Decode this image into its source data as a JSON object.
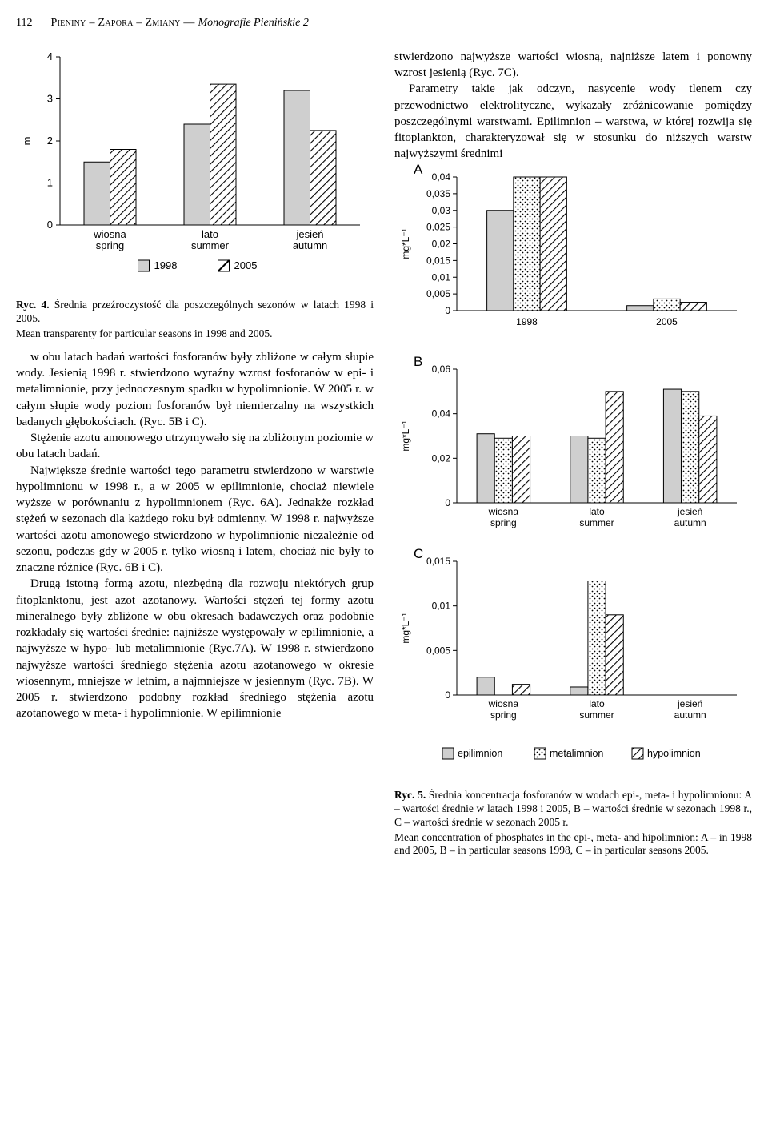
{
  "header": {
    "page_number": "112",
    "running": "Pieniny – Zapora – Zmiany — ",
    "running_ital": "Monografie Pienińskie 2"
  },
  "fig4": {
    "type": "bar",
    "ylim": [
      0,
      4
    ],
    "yticks": [
      0,
      1,
      2,
      3,
      4
    ],
    "categories": [
      {
        "pl": "wiosna",
        "en": "spring"
      },
      {
        "pl": "lato",
        "en": "summer"
      },
      {
        "pl": "jesień",
        "en": "autumn"
      }
    ],
    "series": [
      {
        "name": "1998",
        "pattern": "solid",
        "values": [
          1.5,
          2.4,
          3.2
        ]
      },
      {
        "name": "2005",
        "pattern": "diag",
        "values": [
          1.8,
          3.35,
          2.25
        ]
      }
    ],
    "ylabel": "m",
    "legend": [
      "1998",
      "2005"
    ],
    "colors": {
      "solid": "#cfcfcf",
      "stroke": "#000000",
      "bg": "#ffffff"
    },
    "caption_pl": "Ryc. 4. Średnia przeźroczystość dla poszczególnych sezonów w latach 1998 i 2005.",
    "caption_en": "Mean transparenty for particular seasons in 1998 and 2005."
  },
  "fig5": {
    "ylabel": "mg*L⁻¹",
    "legend": [
      {
        "label": "epilimnion",
        "pattern": "solid"
      },
      {
        "label": "metalimnion",
        "pattern": "dots"
      },
      {
        "label": "hypolimnion",
        "pattern": "diag"
      }
    ],
    "A": {
      "letter": "A",
      "type": "bar",
      "ylim": [
        0,
        0.04
      ],
      "yticks": [
        0,
        0.005,
        0.01,
        0.015,
        0.02,
        0.025,
        0.03,
        0.035,
        0.04
      ],
      "ytick_labels": [
        "0",
        "0,005",
        "0,01",
        "0,015",
        "0,02",
        "0,025",
        "0,03",
        "0,035",
        "0,04"
      ],
      "categories": [
        "1998",
        "2005"
      ],
      "series": [
        {
          "pattern": "solid",
          "values": [
            0.03,
            0.0015
          ]
        },
        {
          "pattern": "dots",
          "values": [
            0.04,
            0.0035
          ]
        },
        {
          "pattern": "diag",
          "values": [
            0.04,
            0.0025
          ]
        }
      ]
    },
    "B": {
      "letter": "B",
      "type": "bar",
      "ylim": [
        0,
        0.06
      ],
      "yticks": [
        0,
        0.02,
        0.04,
        0.06
      ],
      "ytick_labels": [
        "0",
        "0,02",
        "0,04",
        "0,06"
      ],
      "categories": [
        {
          "pl": "wiosna",
          "en": "spring"
        },
        {
          "pl": "lato",
          "en": "summer"
        },
        {
          "pl": "jesień",
          "en": "autumn"
        }
      ],
      "series": [
        {
          "pattern": "solid",
          "values": [
            0.031,
            0.03,
            0.051
          ]
        },
        {
          "pattern": "dots",
          "values": [
            0.029,
            0.029,
            0.05
          ]
        },
        {
          "pattern": "diag",
          "values": [
            0.03,
            0.05,
            0.039
          ]
        }
      ]
    },
    "C": {
      "letter": "C",
      "type": "bar",
      "ylim": [
        0,
        0.015
      ],
      "yticks": [
        0,
        0.005,
        0.01,
        0.015
      ],
      "ytick_labels": [
        "0",
        "0,005",
        "0,01",
        "0,015"
      ],
      "categories": [
        {
          "pl": "wiosna",
          "en": "spring"
        },
        {
          "pl": "lato",
          "en": "summer"
        },
        {
          "pl": "jesień",
          "en": "autumn"
        }
      ],
      "series": [
        {
          "pattern": "solid",
          "values": [
            0.002,
            0.0009,
            0.0
          ]
        },
        {
          "pattern": "dots",
          "values": [
            0.0,
            0.0128,
            0.0
          ]
        },
        {
          "pattern": "diag",
          "values": [
            0.0012,
            0.009,
            0.0
          ]
        }
      ]
    },
    "caption_pl": "Ryc. 5. Średnia koncentracja fosforanów w wodach epi-, meta- i hypolimnionu: A – wartości średnie w latach 1998 i 2005, B – wartości średnie w sezonach 1998 r., C – wartości średnie w sezonach 2005 r.",
    "caption_en": "Mean concentration of phosphates in the epi-, meta- and hipolimnion: A – in 1998 and 2005, B – in particular seasons 1998, C – in particular seasons 2005."
  },
  "text": {
    "left_p1": "w obu latach badań wartości fosforanów były zbliżone w całym słupie wody. Jesienią 1998 r. stwierdzono wyraźny wzrost fosforanów w epi- i metalimnionie, przy jednoczesnym spadku w hypolimnionie. W 2005 r. w całym słupie wody poziom fosforanów był niemierzalny na wszystkich badanych głębokościach. (Ryc. 5B i C).",
    "left_p2": "Stężenie azotu amonowego utrzymywało się na zbliżonym poziomie w obu latach badań.",
    "left_p3": "Największe średnie wartości tego parametru stwierdzono w warstwie hypolimnionu w 1998 r., a w 2005 w epilimnionie, chociaż niewiele wyższe w porównaniu z hypolimnionem (Ryc. 6A). Jednakże rozkład stężeń w sezonach dla każdego roku był odmienny. W 1998 r. najwyższe wartości azotu amonowego stwierdzono w hypolimnionie niezależnie od sezonu, podczas gdy w 2005 r. tylko wiosną i latem, chociaż nie były to znaczne różnice (Ryc. 6B i C).",
    "left_p4": "Drugą istotną formą azotu, niezbędną dla rozwoju niektórych grup fitoplanktonu, jest azot azotanowy. Wartości stężeń tej formy azotu mineralnego były zbliżone w obu okresach badawczych oraz podobnie rozkładały się wartości średnie: najniższe występowały w epilimnionie, a najwyższe w hypo- lub metalimnionie (Ryc.7A). W 1998 r. stwierdzono najwyższe wartości średniego stężenia azotu azotanowego w okresie wiosennym, mniejsze w letnim, a najmniejsze w jesiennym (Ryc. 7B). W 2005 r. stwierdzono podobny rozkład średniego stężenia azotu azotanowego w meta- i hypolimnionie. W epilimnionie",
    "right_p1": "stwierdzono najwyższe wartości wiosną, najniższe latem i ponowny wzrost jesienią (Ryc. 7C).",
    "right_p2": "Parametry takie jak odczyn, nasycenie wody tlenem czy przewodnictwo elektrolityczne, wykazały zróżnicowanie pomiędzy poszczególnymi warstwami. Epilimnion – warstwa, w której rozwija się fitoplankton, charakteryzował się w stosunku do niższych warstw najwyższymi średnimi"
  }
}
